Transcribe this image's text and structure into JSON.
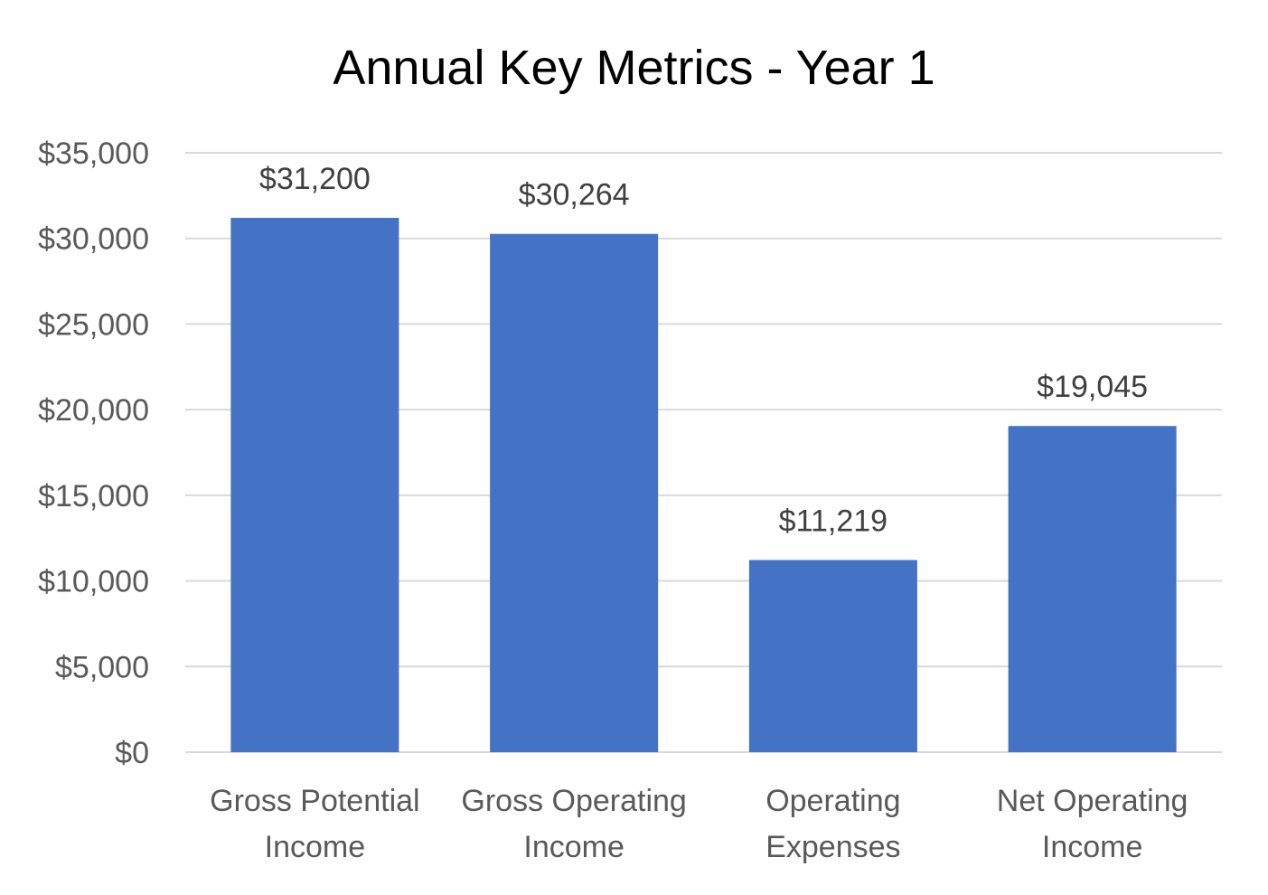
{
  "chart_data": {
    "type": "bar",
    "title": "Annual Key Metrics - Year 1",
    "categories": [
      [
        "Gross Potential",
        "Income"
      ],
      [
        "Gross Operating",
        "Income"
      ],
      [
        "Operating",
        "Expenses"
      ],
      [
        "Net Operating",
        "Income"
      ]
    ],
    "values": [
      31200,
      30264,
      11219,
      19045
    ],
    "data_labels": [
      "$31,200",
      "$30,264",
      "$11,219",
      "$19,045"
    ],
    "y_ticks": [
      0,
      5000,
      10000,
      15000,
      20000,
      25000,
      30000,
      35000
    ],
    "y_tick_labels": [
      "$0",
      "$5,000",
      "$10,000",
      "$15,000",
      "$20,000",
      "$25,000",
      "$30,000",
      "$35,000"
    ],
    "ylim": [
      0,
      35000
    ],
    "grid": true,
    "legend": "none",
    "colors": {
      "bar": "#4472C4",
      "grid": "#D9D9D9",
      "axis_text": "#595959",
      "data_label_text": "#404040"
    }
  }
}
